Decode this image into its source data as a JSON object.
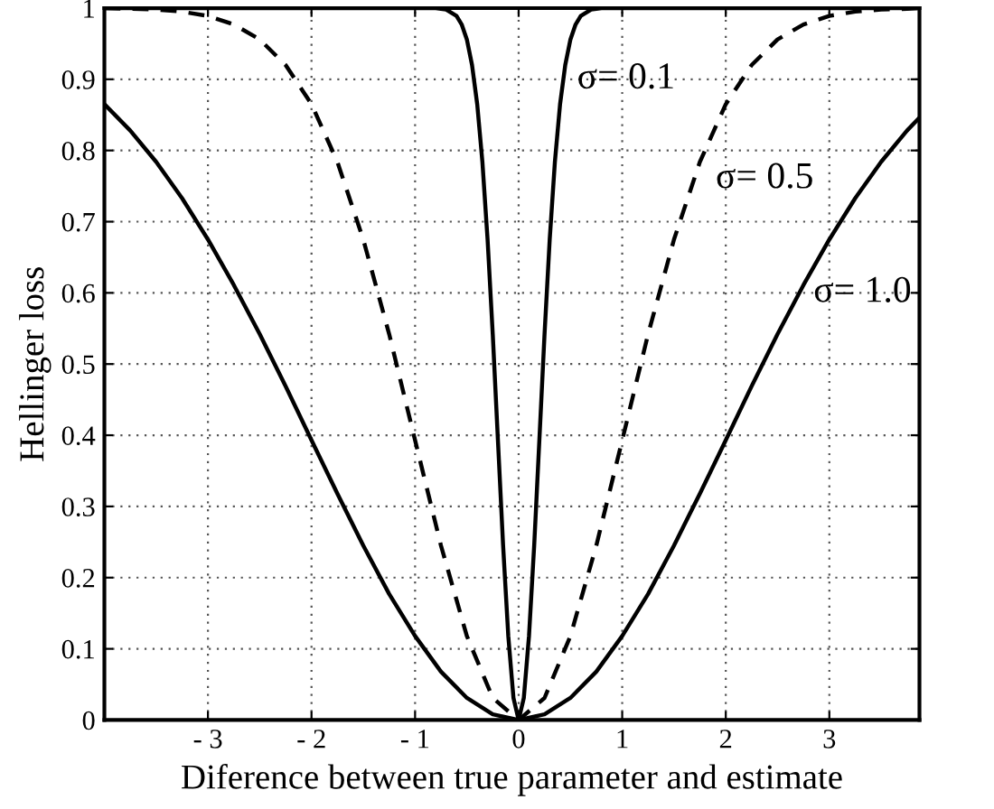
{
  "chart_data": {
    "type": "line",
    "xlabel": "Diference between true parameter and estimate",
    "ylabel": "Hellinger loss",
    "xlim": [
      -4,
      3.87
    ],
    "ylim": [
      0,
      1
    ],
    "xticks": [
      {
        "value": -3,
        "label": "- 3"
      },
      {
        "value": -2,
        "label": "- 2"
      },
      {
        "value": -1,
        "label": "- 1"
      },
      0,
      1,
      2,
      3
    ],
    "yticks": [
      0,
      0.1,
      0.2,
      0.3,
      0.4,
      0.5,
      0.6,
      0.7,
      0.8,
      0.9,
      1
    ],
    "grid": true,
    "marker": "none",
    "series": [
      {
        "color": "#000000",
        "line_style": "solid",
        "x": [
          -4,
          -3.75,
          -3.5,
          -3.25,
          -3,
          -2.75,
          -2.5,
          -2.25,
          -2,
          -1.75,
          -1.5,
          -1.25,
          -1,
          -0.75,
          -0.5,
          -0.25,
          0,
          0.25,
          0.5,
          0.75,
          1,
          1.25,
          1.5,
          1.75,
          2,
          2.25,
          2.5,
          2.75,
          3,
          3.25,
          3.5,
          3.75,
          3.87
        ],
        "values": [
          0.865,
          0.828,
          0.784,
          0.733,
          0.675,
          0.611,
          0.542,
          0.469,
          0.393,
          0.318,
          0.245,
          0.177,
          0.118,
          0.068,
          0.031,
          0.008,
          0,
          0.008,
          0.031,
          0.068,
          0.118,
          0.177,
          0.245,
          0.318,
          0.393,
          0.469,
          0.542,
          0.611,
          0.675,
          0.733,
          0.784,
          0.828,
          0.846
        ]
      },
      {
        "color": "#000000",
        "line_style": "dashed",
        "x": [
          -4,
          -3.75,
          -3.5,
          -3.25,
          -3,
          -2.75,
          -2.5,
          -2.25,
          -2,
          -1.75,
          -1.5,
          -1.25,
          -1,
          -0.75,
          -0.5,
          -0.25,
          0,
          0.25,
          0.5,
          0.75,
          1,
          1.25,
          1.5,
          1.75,
          2,
          2.25,
          2.5,
          2.75,
          3,
          3.25,
          3.5,
          3.75,
          3.87
        ],
        "values": [
          1.0,
          0.999,
          0.998,
          0.995,
          0.989,
          0.977,
          0.956,
          0.92,
          0.865,
          0.784,
          0.675,
          0.542,
          0.393,
          0.245,
          0.118,
          0.031,
          0,
          0.031,
          0.118,
          0.245,
          0.393,
          0.542,
          0.675,
          0.784,
          0.865,
          0.92,
          0.956,
          0.977,
          0.989,
          0.995,
          0.998,
          0.999,
          1.0
        ]
      },
      {
        "color": "#000000",
        "line_style": "solid",
        "x": [
          -4,
          -0.8,
          -0.7,
          -0.6,
          -0.55,
          -0.5,
          -0.45,
          -0.4,
          -0.35,
          -0.3,
          -0.25,
          -0.2,
          -0.15,
          -0.1,
          -0.05,
          0,
          0.05,
          0.1,
          0.15,
          0.2,
          0.25,
          0.3,
          0.35,
          0.4,
          0.45,
          0.5,
          0.55,
          0.6,
          0.7,
          0.8,
          3.87
        ],
        "values": [
          1.0,
          1.0,
          0.998,
          0.989,
          0.977,
          0.956,
          0.92,
          0.865,
          0.784,
          0.675,
          0.542,
          0.393,
          0.245,
          0.118,
          0.031,
          0,
          0.031,
          0.118,
          0.245,
          0.393,
          0.542,
          0.675,
          0.784,
          0.865,
          0.92,
          0.956,
          0.977,
          0.989,
          0.998,
          1.0,
          1.0
        ]
      }
    ],
    "annotations": [
      "σ= 0.1",
      "σ= 0.5",
      "σ= 1.0"
    ]
  }
}
